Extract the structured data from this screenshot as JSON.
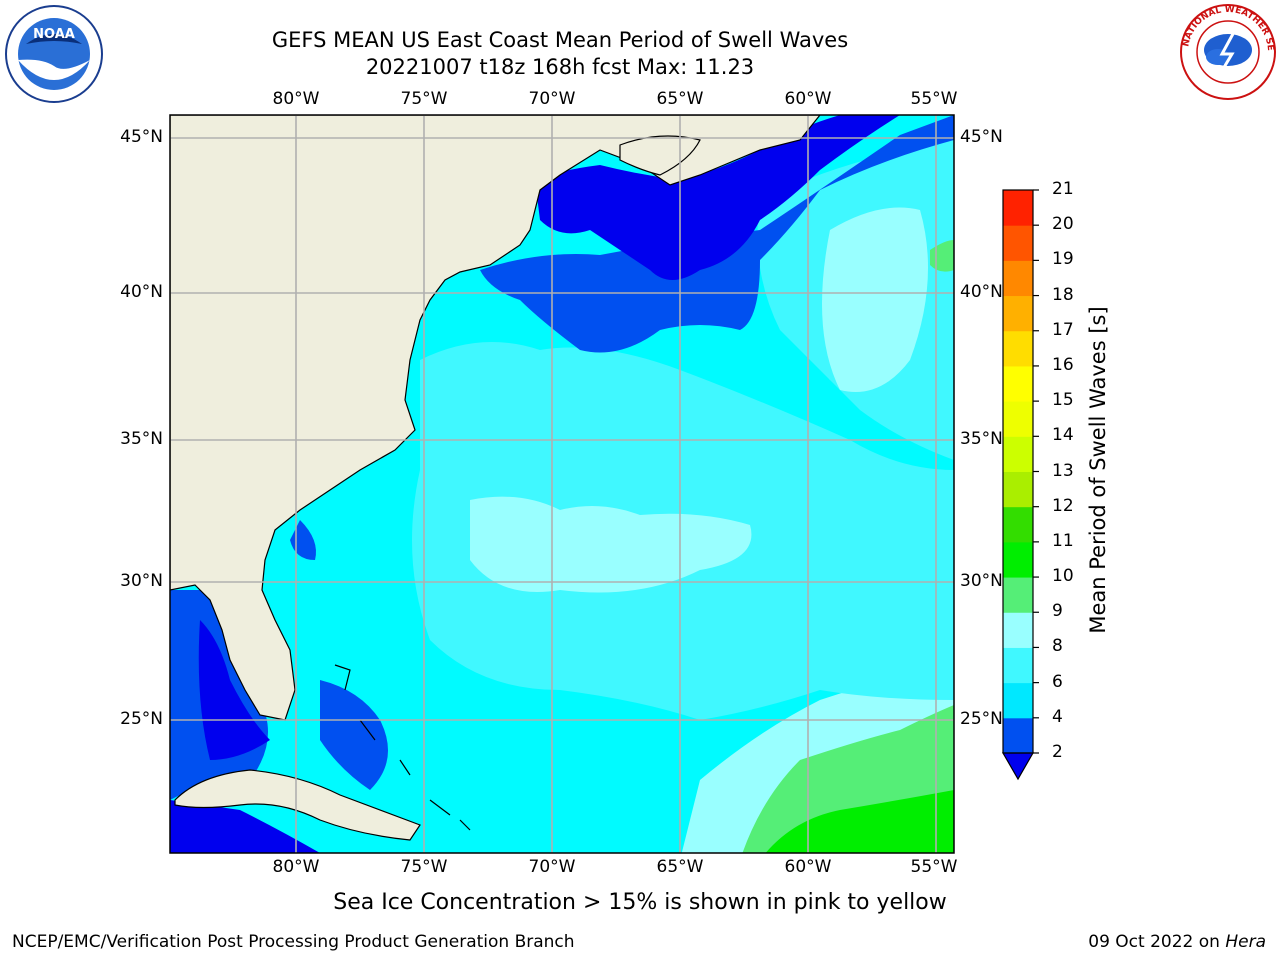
{
  "title": {
    "line1": "GEFS MEAN US East Coast Mean Period of Swell Waves",
    "line2": "20221007 t18z 168h fcst   Max: 11.23"
  },
  "map": {
    "lon_labels": [
      "80°W",
      "75°W",
      "70°W",
      "65°W",
      "60°W",
      "55°W"
    ],
    "lat_labels": [
      "45°N",
      "40°N",
      "35°N",
      "30°N",
      "25°N"
    ],
    "lat_labels_right": [
      "45°N",
      "40°N",
      "35°N",
      "30°N",
      "25°N"
    ],
    "land_color": "#efeedd",
    "grid_color": "#b0b0b0"
  },
  "colorbar": {
    "title": "Mean Period of Swell Waves [s]",
    "ticks": [
      "2",
      "4",
      "6",
      "8",
      "9",
      "10",
      "11",
      "12",
      "13",
      "14",
      "15",
      "16",
      "17",
      "18",
      "19",
      "20",
      "21"
    ],
    "colors": [
      "#0050f0",
      "#00e8ff",
      "#40f8ff",
      "#99ffff",
      "#55ee77",
      "#00ee00",
      "#33dd00",
      "#aaee00",
      "#ccff00",
      "#eeff00",
      "#ffff00",
      "#ffdd00",
      "#ffb000",
      "#ff8800",
      "#ff5500",
      "#ff2200",
      "#ff0000"
    ],
    "extend_color": "#0000ee"
  },
  "legend_palette": {
    "lt2": "#0000ee",
    "2_4": "#0050f0",
    "4_6": "#00e8ff",
    "6_8": "#40f8ff",
    "8_9": "#99ffff",
    "9_10": "#55ee77",
    "10_11": "#00ee00"
  },
  "sea_ice_note": "Sea Ice Concentration > 15% is shown in pink to yellow",
  "footer": {
    "left": "NCEP/EMC/Verification Post Processing Product Generation Branch",
    "date": "09 Oct 2022 on",
    "machine": "Hera"
  },
  "logos": {
    "noaa_text": "NOAA",
    "nws_text": "NATIONAL WEATHER SERVICE"
  }
}
